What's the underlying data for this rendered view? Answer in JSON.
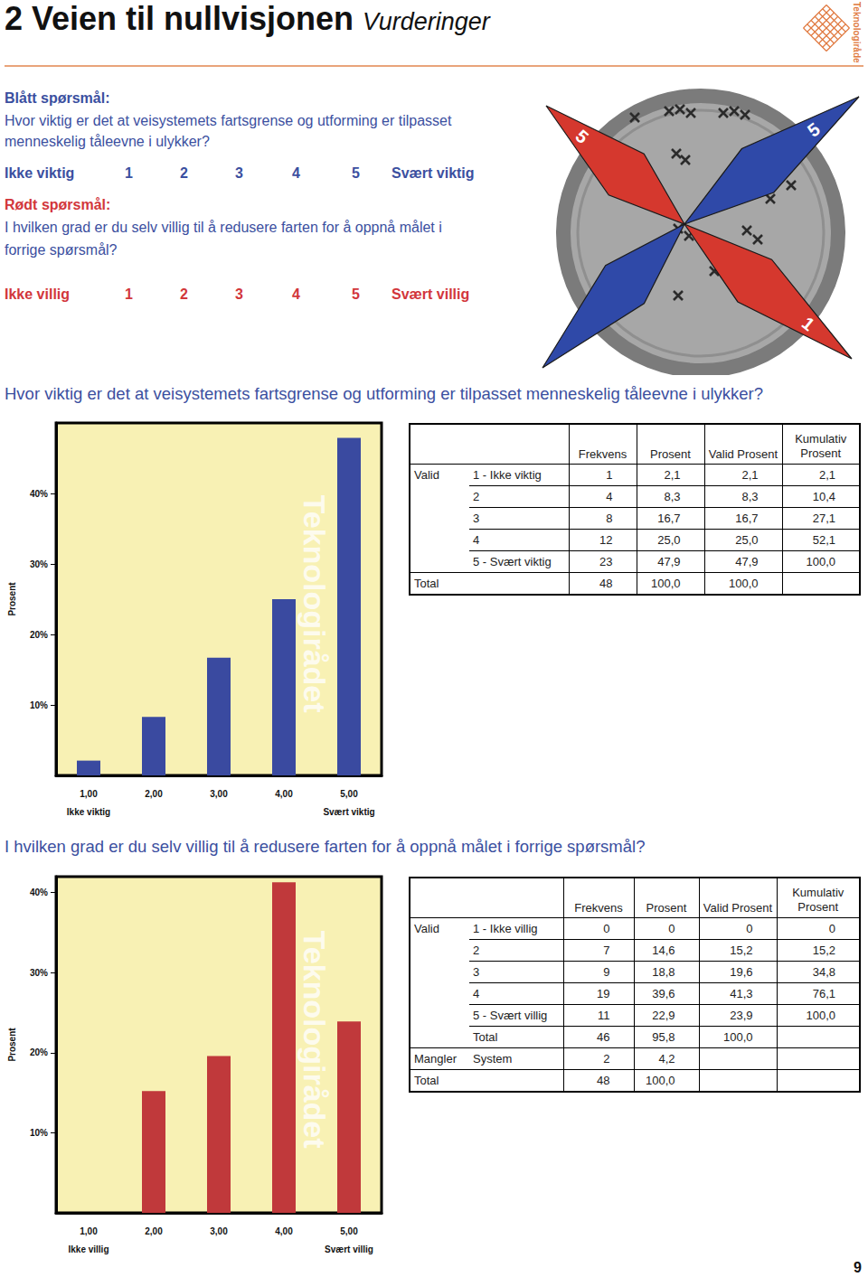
{
  "header": {
    "title": "2 Veien til nullvisjonen",
    "subtitle": "Vurderinger",
    "logo_text": "Teknologirådet"
  },
  "questions": [
    {
      "heading": "Blått spørsmål:",
      "color": "#3b4fa0",
      "lines": [
        "Hvor viktig er det at veisystemets fartsgrense og utforming er tilpasset",
        "menneskelig tåleevne i ulykker?"
      ],
      "scale": {
        "low": "Ikke viktig",
        "points": [
          "1",
          "2",
          "3",
          "4",
          "5"
        ],
        "high": "Svært viktig"
      }
    },
    {
      "heading": "Rødt spørsmål:",
      "color": "#d2363b",
      "lines": [
        "I hvilken grad er du selv villig til å redusere farten for å oppnå målet i",
        "forrige spørsmål?"
      ],
      "scale": {
        "low": "Ikke villig",
        "points": [
          "1",
          "2",
          "3",
          "4",
          "5"
        ],
        "high": "Svært villig"
      }
    }
  ],
  "illustration": {
    "labels": [
      "5",
      "5",
      "1"
    ]
  },
  "chart_data": [
    {
      "type": "bar",
      "title": "Hvor viktig er det at veisystemets fartsgrense og utforming er tilpasset menneskelig tåleevne i ulykker?",
      "categories": [
        "1,00",
        "2,00",
        "3,00",
        "4,00",
        "5,00"
      ],
      "x_end_labels": {
        "low": "Ikke viktig",
        "high": "Svært viktig"
      },
      "values": [
        2.1,
        8.3,
        16.7,
        25.0,
        47.9
      ],
      "color": "#3a4aa0",
      "ylabel": "Prosent",
      "ylim": [
        0,
        50
      ],
      "yticks": [
        {
          "value": 10,
          "label": "10%"
        },
        {
          "value": 20,
          "label": "20%"
        },
        {
          "value": 30,
          "label": "30%"
        },
        {
          "value": 40,
          "label": "40%"
        }
      ],
      "watermark": "Teknologirådet",
      "grid": false
    },
    {
      "type": "bar",
      "title": "I hvilken grad er du selv villig til å redusere farten for å oppnå målet i forrige spørsmål?",
      "categories": [
        "1,00",
        "2,00",
        "3,00",
        "4,00",
        "5,00"
      ],
      "x_end_labels": {
        "low": "Ikke villig",
        "high": "Svært villig"
      },
      "values": [
        0,
        15.2,
        19.6,
        41.3,
        23.9
      ],
      "color": "#c0393b",
      "ylabel": "Prosent",
      "ylim": [
        0,
        42
      ],
      "yticks": [
        {
          "value": 10,
          "label": "10%"
        },
        {
          "value": 20,
          "label": "20%"
        },
        {
          "value": 30,
          "label": "30%"
        },
        {
          "value": 40,
          "label": "40%"
        }
      ],
      "watermark": "Teknologirådet",
      "grid": false
    }
  ],
  "tables": [
    {
      "header": [
        "Frekvens",
        "Prosent",
        "Valid Prosent",
        "Kumulativ Prosent"
      ],
      "rows": [
        [
          "Valid",
          "1 - Ikke viktig",
          "1",
          "2,1",
          "2,1",
          "2,1"
        ],
        [
          null,
          "2",
          "4",
          "8,3",
          "8,3",
          "10,4"
        ],
        [
          null,
          "3",
          "8",
          "16,7",
          "16,7",
          "27,1"
        ],
        [
          null,
          "4",
          "12",
          "25,0",
          "25,0",
          "52,1"
        ],
        [
          null,
          "5 - Svært viktig",
          "23",
          "47,9",
          "47,9",
          "100,0"
        ],
        [
          "Total",
          null,
          "48",
          "100,0",
          "100,0",
          null
        ]
      ]
    },
    {
      "header": [
        "Frekvens",
        "Prosent",
        "Valid Prosent",
        "Kumulativ Prosent"
      ],
      "rows": [
        [
          "Valid",
          "1 - Ikke villig",
          "0",
          "0",
          "0",
          "0"
        ],
        [
          null,
          "2",
          "7",
          "14,6",
          "15,2",
          "15,2"
        ],
        [
          null,
          "3",
          "9",
          "18,8",
          "19,6",
          "34,8"
        ],
        [
          null,
          "4",
          "19",
          "39,6",
          "41,3",
          "76,1"
        ],
        [
          null,
          "5 - Svært villig",
          "11",
          "22,9",
          "23,9",
          "100,0"
        ],
        [
          null,
          "Total",
          "46",
          "95,8",
          "100,0",
          null
        ],
        [
          "Mangler",
          "System",
          "2",
          "4,2",
          null,
          null
        ],
        [
          "Total",
          null,
          "48",
          "100,0",
          null,
          null
        ]
      ]
    }
  ],
  "page_number": "9"
}
